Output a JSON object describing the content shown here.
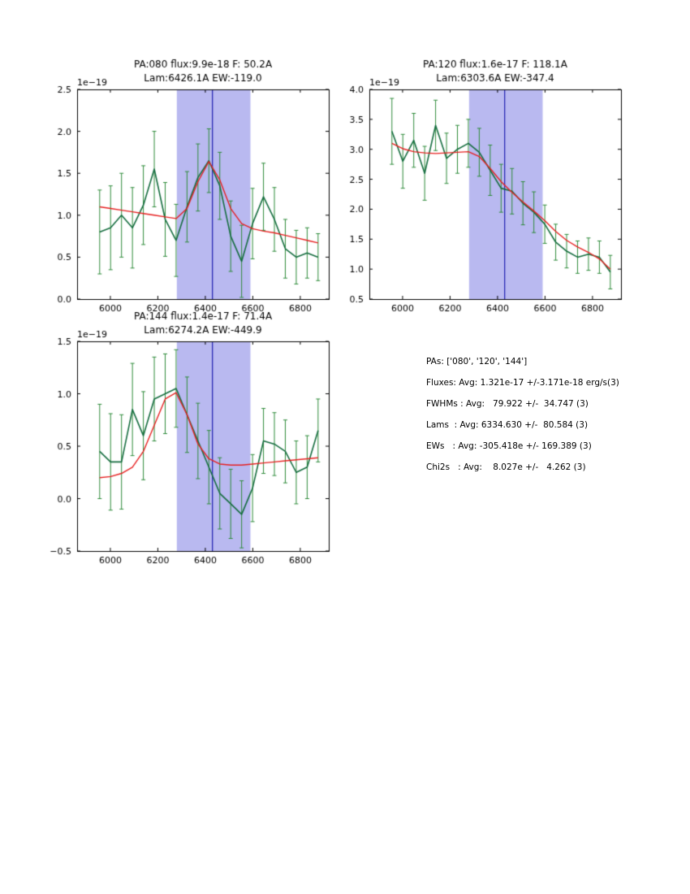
{
  "figure": {
    "background": "#ffffff"
  },
  "colors": {
    "data_green": "#156d3f",
    "errorbar_green": "#2e8b3a",
    "fit_red": "#e62020",
    "band_lavender": "#b9b9f0",
    "vline_blue": "#2020b0",
    "axis_black": "#000000"
  },
  "chart_data": [
    {
      "type": "line",
      "title": [
        "PA:080 flux:9.9e-18 F: 50.2A",
        "Lam:6426.1A EW:-119.0"
      ],
      "y_offset_label": "1e−19",
      "xlim": [
        5860,
        6920
      ],
      "ylim": [
        0.0,
        2.5
      ],
      "xticks": [
        6000,
        6200,
        6400,
        6600,
        6800
      ],
      "xtick_labels": [
        "6000",
        "6200",
        "6400",
        "6600",
        "6800"
      ],
      "yticks": [
        0.0,
        0.5,
        1.0,
        1.5,
        2.0,
        2.5
      ],
      "ytick_labels": [
        "0.0",
        "0.5",
        "1.0",
        "1.5",
        "2.0",
        "2.5"
      ],
      "shaded_band_x": [
        6280,
        6590
      ],
      "vline_x": 6430,
      "x": [
        5955,
        6001,
        6047,
        6093,
        6139,
        6185,
        6231,
        6277,
        6323,
        6369,
        6415,
        6461,
        6507,
        6553,
        6599,
        6645,
        6691,
        6737,
        6783,
        6829,
        6875
      ],
      "series": [
        {
          "name": "spectrum",
          "color_key": "data_green",
          "values": [
            0.8,
            0.85,
            1.0,
            0.85,
            1.12,
            1.55,
            0.95,
            0.7,
            1.1,
            1.45,
            1.65,
            1.35,
            0.75,
            0.45,
            0.9,
            1.22,
            0.95,
            0.6,
            0.5,
            0.55,
            0.5
          ],
          "errors": [
            0.5,
            0.5,
            0.5,
            0.48,
            0.47,
            0.45,
            0.44,
            0.43,
            0.42,
            0.4,
            0.38,
            0.4,
            0.42,
            0.43,
            0.42,
            0.4,
            0.38,
            0.35,
            0.32,
            0.3,
            0.28
          ]
        },
        {
          "name": "gaussian-fit",
          "color_key": "fit_red",
          "values": [
            1.1,
            1.08,
            1.06,
            1.04,
            1.02,
            1.0,
            0.98,
            0.96,
            1.08,
            1.4,
            1.64,
            1.42,
            1.08,
            0.9,
            0.84,
            0.81,
            0.79,
            0.76,
            0.73,
            0.7,
            0.67
          ]
        }
      ]
    },
    {
      "type": "line",
      "title": [
        "PA:120 flux:1.6e-17 F: 118.1A",
        "Lam:6303.6A EW:-347.4"
      ],
      "y_offset_label": "1e−19",
      "xlim": [
        5860,
        6920
      ],
      "ylim": [
        0.5,
        4.0
      ],
      "xticks": [
        6000,
        6200,
        6400,
        6600,
        6800
      ],
      "xtick_labels": [
        "6000",
        "6200",
        "6400",
        "6600",
        "6800"
      ],
      "yticks": [
        0.5,
        1.0,
        1.5,
        2.0,
        2.5,
        3.0,
        3.5,
        4.0
      ],
      "ytick_labels": [
        "0.5",
        "1.0",
        "1.5",
        "2.0",
        "2.5",
        "3.0",
        "3.5",
        "4.0"
      ],
      "shaded_band_x": [
        6280,
        6590
      ],
      "vline_x": 6430,
      "x": [
        5955,
        6001,
        6047,
        6093,
        6139,
        6185,
        6231,
        6277,
        6323,
        6369,
        6415,
        6461,
        6507,
        6553,
        6599,
        6645,
        6691,
        6737,
        6783,
        6829,
        6875
      ],
      "series": [
        {
          "name": "spectrum",
          "color_key": "data_green",
          "values": [
            3.3,
            2.8,
            3.15,
            2.6,
            3.4,
            2.85,
            3.0,
            3.1,
            2.95,
            2.65,
            2.35,
            2.3,
            2.1,
            1.95,
            1.75,
            1.45,
            1.3,
            1.2,
            1.25,
            1.2,
            0.95
          ],
          "errors": [
            0.55,
            0.45,
            0.45,
            0.45,
            0.42,
            0.42,
            0.4,
            0.4,
            0.4,
            0.42,
            0.4,
            0.38,
            0.36,
            0.34,
            0.32,
            0.3,
            0.28,
            0.27,
            0.27,
            0.27,
            0.28
          ]
        },
        {
          "name": "gaussian-fit",
          "color_key": "fit_red",
          "values": [
            3.1,
            3.01,
            2.96,
            2.94,
            2.93,
            2.94,
            2.95,
            2.96,
            2.88,
            2.68,
            2.46,
            2.28,
            2.12,
            1.97,
            1.81,
            1.63,
            1.48,
            1.37,
            1.28,
            1.17,
            1.0
          ]
        }
      ]
    },
    {
      "type": "line",
      "title": [
        "PA:144 flux:1.4e-17 F: 71.4A",
        "Lam:6274.2A EW:-449.9"
      ],
      "y_offset_label": "1e−19",
      "xlim": [
        5860,
        6920
      ],
      "ylim": [
        -0.5,
        1.5
      ],
      "xticks": [
        6000,
        6200,
        6400,
        6600,
        6800
      ],
      "xtick_labels": [
        "6000",
        "6200",
        "6400",
        "6600",
        "6800"
      ],
      "yticks": [
        -0.5,
        0.0,
        0.5,
        1.0,
        1.5
      ],
      "ytick_labels": [
        "−0.5",
        "0.0",
        "0.5",
        "1.0",
        "1.5"
      ],
      "shaded_band_x": [
        6280,
        6590
      ],
      "vline_x": 6430,
      "x": [
        5955,
        6001,
        6047,
        6093,
        6139,
        6185,
        6231,
        6277,
        6323,
        6369,
        6415,
        6461,
        6507,
        6553,
        6599,
        6645,
        6691,
        6737,
        6783,
        6829,
        6875
      ],
      "series": [
        {
          "name": "spectrum",
          "color_key": "data_green",
          "values": [
            0.45,
            0.35,
            0.35,
            0.85,
            0.6,
            0.95,
            1.0,
            1.05,
            0.8,
            0.55,
            0.3,
            0.05,
            -0.05,
            -0.15,
            0.1,
            0.55,
            0.52,
            0.45,
            0.25,
            0.3,
            0.65
          ],
          "errors": [
            0.45,
            0.46,
            0.45,
            0.44,
            0.42,
            0.4,
            0.38,
            0.37,
            0.36,
            0.36,
            0.35,
            0.34,
            0.33,
            0.32,
            0.32,
            0.31,
            0.3,
            0.3,
            0.3,
            0.3,
            0.3
          ]
        },
        {
          "name": "gaussian-fit",
          "color_key": "fit_red",
          "values": [
            0.2,
            0.21,
            0.24,
            0.3,
            0.45,
            0.7,
            0.95,
            1.01,
            0.8,
            0.52,
            0.38,
            0.33,
            0.32,
            0.32,
            0.33,
            0.34,
            0.35,
            0.36,
            0.37,
            0.38,
            0.39
          ]
        }
      ]
    }
  ],
  "stats_panel": {
    "lines": [
      "PAs: ['080', '120', '144']",
      "Fluxes: Avg: 1.321e-17 +/-3.171e-18 erg/s(3)",
      "FWHMs : Avg:   79.922 +/-  34.747 (3)",
      "Lams  : Avg: 6334.630 +/-  80.584 (3)",
      "EWs   : Avg: -305.418e +/- 169.389 (3)",
      "Chi2s   : Avg:    8.027e +/-   4.262 (3)"
    ]
  }
}
